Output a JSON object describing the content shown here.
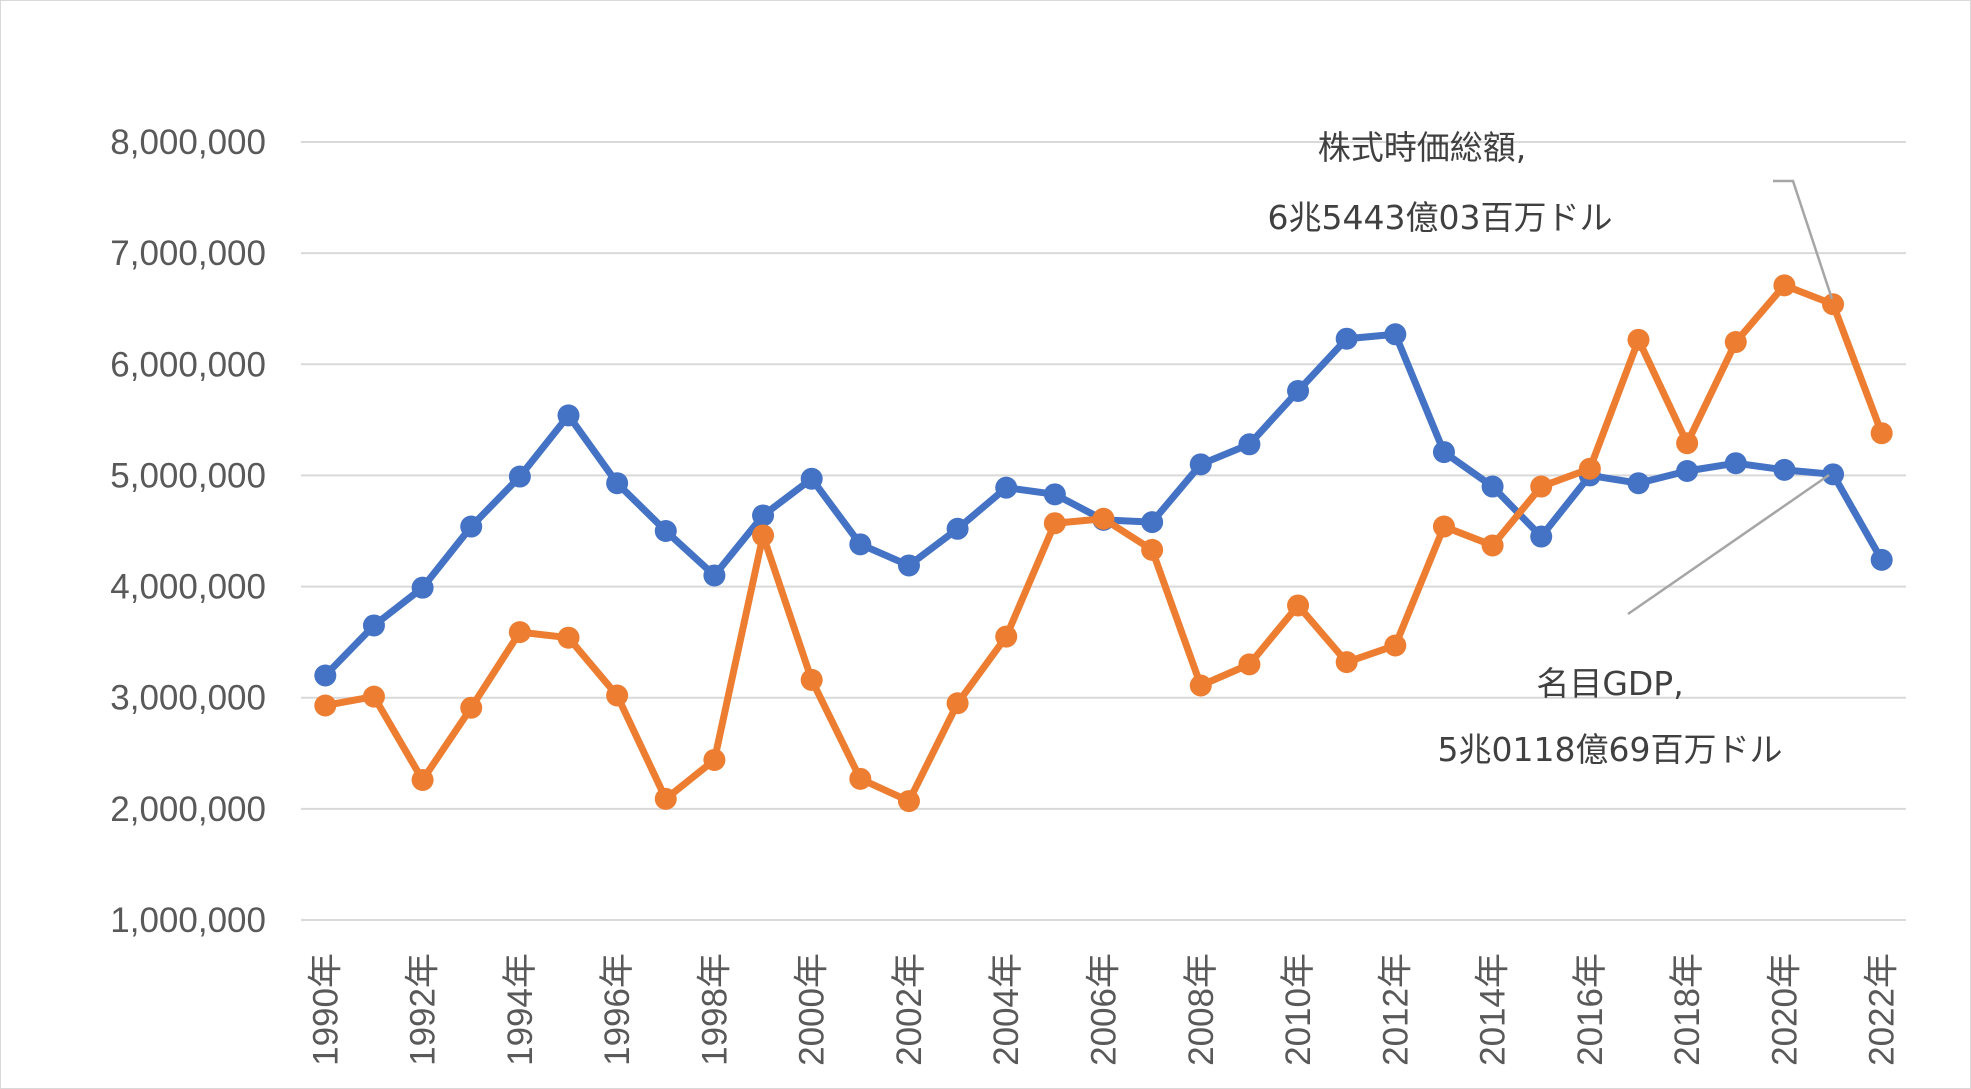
{
  "chart_data": {
    "type": "line",
    "title": "",
    "xlabel": "",
    "ylabel": "",
    "ylim": [
      1000000,
      8000000
    ],
    "y_ticks": [
      "1,000,000",
      "2,000,000",
      "3,000,000",
      "4,000,000",
      "5,000,000",
      "6,000,000",
      "7,000,000",
      "8,000,000"
    ],
    "y_tick_values": [
      1000000,
      2000000,
      3000000,
      4000000,
      5000000,
      6000000,
      7000000,
      8000000
    ],
    "categories": [
      "1990年",
      "1991年",
      "1992年",
      "1993年",
      "1994年",
      "1995年",
      "1996年",
      "1997年",
      "1998年",
      "1999年",
      "2000年",
      "2001年",
      "2002年",
      "2003年",
      "2004年",
      "2005年",
      "2006年",
      "2007年",
      "2008年",
      "2009年",
      "2010年",
      "2011年",
      "2012年",
      "2013年",
      "2014年",
      "2015年",
      "2016年",
      "2017年",
      "2018年",
      "2019年",
      "2020年",
      "2021年",
      "2022年"
    ],
    "x_tick_labels": [
      "1990年",
      "1992年",
      "1994年",
      "1996年",
      "1998年",
      "2000年",
      "2002年",
      "2004年",
      "2006年",
      "2008年",
      "2010年",
      "2012年",
      "2014年",
      "2016年",
      "2018年",
      "2020年",
      "2022年"
    ],
    "grid": true,
    "legend": "none",
    "series": [
      {
        "name": "名目GDP",
        "color": "#4472c4",
        "values": [
          3200000,
          3650000,
          3990000,
          4540000,
          4990000,
          5540000,
          4930000,
          4500000,
          4100000,
          4640000,
          4970000,
          4380000,
          4190000,
          4520000,
          4890000,
          4830000,
          4600000,
          4580000,
          5100000,
          5280000,
          5760000,
          6230000,
          6270000,
          5210000,
          4900000,
          4450000,
          5000000,
          4930000,
          5040000,
          5110000,
          5050000,
          5010000,
          4240000
        ]
      },
      {
        "name": "株式時価総額",
        "color": "#ed7d31",
        "values": [
          2930000,
          3010000,
          2260000,
          2910000,
          3590000,
          3540000,
          3020000,
          2090000,
          2440000,
          4460000,
          3160000,
          2270000,
          2070000,
          2950000,
          3550000,
          4570000,
          4610000,
          4330000,
          3110000,
          3300000,
          3830000,
          3320000,
          3470000,
          4540000,
          4370000,
          4900000,
          5060000,
          6220000,
          5290000,
          6200000,
          6710000,
          6540000,
          5380000
        ]
      }
    ],
    "annotations": [
      {
        "series": "株式時価総額",
        "line1": "株式時価総額,",
        "line2": "6兆5443億03百万ドル"
      },
      {
        "series": "名目GDP",
        "line1": "名目GDP,",
        "line2": "5兆0118億69百万ドル"
      }
    ]
  }
}
